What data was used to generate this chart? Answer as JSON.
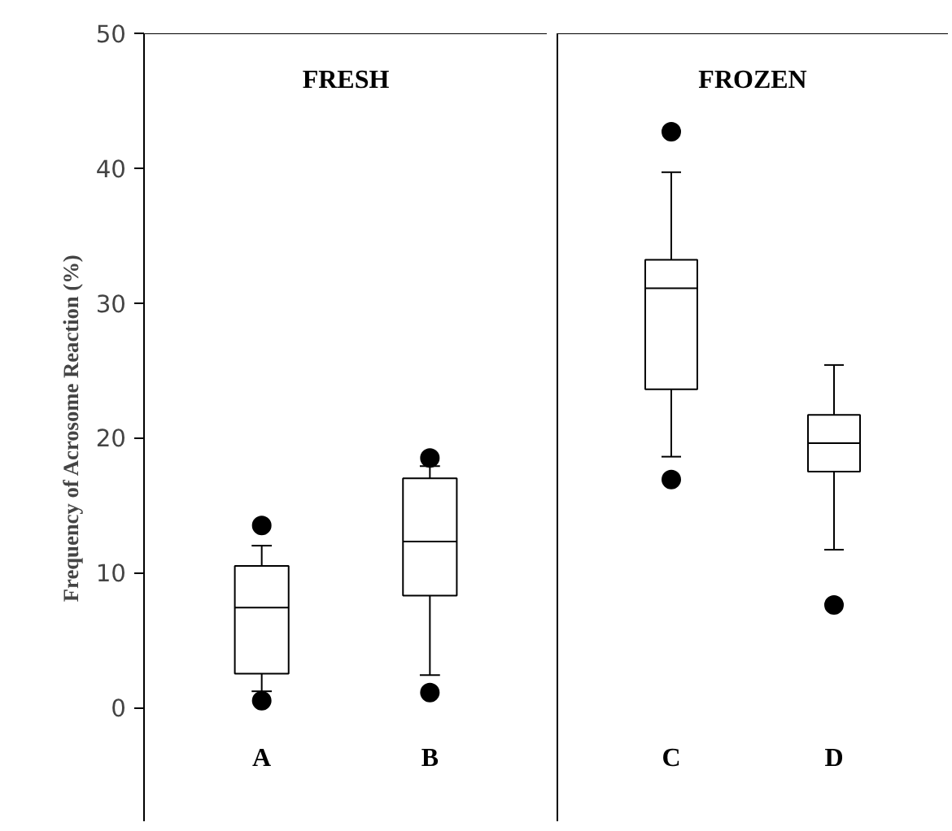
{
  "chart_data": [
    {
      "type": "box",
      "title": "FRESH",
      "ylabel": "Frequency of Acrosome Reaction (%)",
      "categories": [
        "A",
        "B"
      ],
      "boxes": [
        {
          "low": 1.2,
          "q1": 2.5,
          "median": 7.4,
          "q3": 10.5,
          "high": 12.0,
          "outliers": [
            13.5,
            0.5
          ]
        },
        {
          "low": 2.4,
          "q1": 8.3,
          "median": 12.3,
          "q3": 17.0,
          "high": 17.9,
          "outliers": [
            18.5,
            1.1
          ]
        }
      ],
      "ylim": [
        -8.5,
        50
      ],
      "yticks": [
        0,
        10,
        20,
        30,
        40,
        50
      ],
      "grid": false,
      "marker": "circle"
    },
    {
      "type": "box",
      "title": "FROZEN",
      "categories": [
        "C",
        "D"
      ],
      "boxes": [
        {
          "low": 18.6,
          "q1": 23.6,
          "median": 31.1,
          "q3": 33.2,
          "high": 39.7,
          "outliers": [
            42.7,
            16.9
          ]
        },
        {
          "low": 11.7,
          "q1": 17.5,
          "median": 19.6,
          "q3": 21.7,
          "high": 25.4,
          "outliers": [
            7.6
          ]
        }
      ],
      "ylim": [
        -8.5,
        50
      ],
      "tick_labels": "x",
      "grid": false,
      "marker": "circle"
    }
  ]
}
